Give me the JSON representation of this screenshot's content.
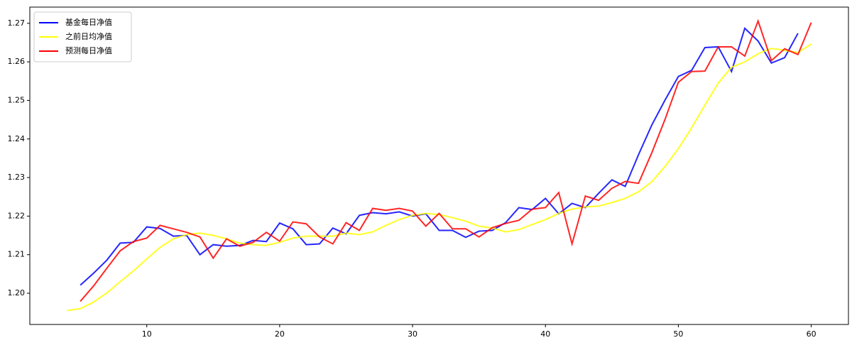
{
  "chart_data": {
    "type": "line",
    "xlim": [
      1.2,
      62.8
    ],
    "ylim": [
      1.1919,
      1.2742
    ],
    "xticks": [
      10,
      20,
      30,
      40,
      50,
      60
    ],
    "yticks": [
      {
        "value": 1.2,
        "label": "1.20"
      },
      1.21,
      1.22,
      1.23,
      1.24,
      1.25,
      1.26,
      1.27
    ],
    "legend": "upper left",
    "series": [
      {
        "name": "基金每日净值",
        "color": "#0000ff",
        "x": [
          5,
          6,
          7,
          8,
          9,
          10,
          11,
          12,
          13,
          14,
          15,
          16,
          17,
          18,
          19,
          20,
          21,
          22,
          23,
          24,
          25,
          26,
          27,
          28,
          29,
          30,
          31,
          32,
          33,
          34,
          35,
          36,
          37,
          38,
          39,
          40,
          41,
          42,
          43,
          44,
          45,
          46,
          47,
          48,
          49,
          50,
          51,
          52,
          53,
          54,
          55,
          56,
          57,
          58,
          59
        ],
        "values": [
          1.2021,
          1.2052,
          1.2086,
          1.213,
          1.2132,
          1.2172,
          1.2168,
          1.2148,
          1.215,
          1.21,
          1.2126,
          1.2122,
          1.2124,
          1.2137,
          1.2134,
          1.2182,
          1.2167,
          1.2126,
          1.2128,
          1.2169,
          1.2154,
          1.2202,
          1.2209,
          1.2206,
          1.2211,
          1.22,
          1.2206,
          1.2163,
          1.2163,
          1.2145,
          1.2161,
          1.2163,
          1.2183,
          1.2222,
          1.2217,
          1.2246,
          1.2206,
          1.2233,
          1.2222,
          1.2259,
          1.2294,
          1.2277,
          1.2359,
          1.2436,
          1.2501,
          1.2562,
          1.2578,
          1.2637,
          1.2639,
          1.2575,
          1.2687,
          1.2654,
          1.2597,
          1.2611,
          1.2674
        ]
      },
      {
        "name": "之前日均净值",
        "color": "#ffff00",
        "x": [
          4,
          5,
          6,
          7,
          8,
          9,
          10,
          11,
          12,
          13,
          14,
          15,
          16,
          17,
          18,
          19,
          20,
          21,
          22,
          23,
          24,
          25,
          26,
          27,
          28,
          29,
          30,
          31,
          32,
          33,
          34,
          35,
          36,
          37,
          38,
          39,
          40,
          41,
          42,
          43,
          44,
          45,
          46,
          47,
          48,
          49,
          50,
          51,
          52,
          53,
          54,
          55,
          56,
          57,
          58,
          59,
          60
        ],
        "values": [
          1.1955,
          1.196,
          1.1977,
          1.2001,
          1.203,
          1.2058,
          1.2089,
          1.2119,
          1.2141,
          1.2152,
          1.2156,
          1.215,
          1.2141,
          1.213,
          1.2126,
          1.2124,
          1.2132,
          1.2143,
          1.2148,
          1.2148,
          1.2148,
          1.2156,
          1.2152,
          1.2159,
          1.2176,
          1.2191,
          1.2202,
          1.2207,
          1.2204,
          1.2196,
          1.2187,
          1.2174,
          1.2169,
          1.2159,
          1.2165,
          1.2178,
          1.2191,
          1.2207,
          1.2218,
          1.2224,
          1.2226,
          1.2235,
          1.2246,
          1.2263,
          1.2289,
          1.2329,
          1.2375,
          1.2429,
          1.2488,
          1.2545,
          1.2586,
          1.26,
          1.2621,
          1.2635,
          1.263,
          1.2624,
          1.2646
        ]
      },
      {
        "name": "预测每日净值",
        "color": "#ff0000",
        "x": [
          5,
          6,
          7,
          8,
          9,
          10,
          11,
          12,
          13,
          14,
          15,
          16,
          17,
          18,
          19,
          20,
          21,
          22,
          23,
          24,
          25,
          26,
          27,
          28,
          29,
          30,
          31,
          32,
          33,
          34,
          35,
          36,
          37,
          38,
          39,
          40,
          41,
          42,
          43,
          44,
          45,
          46,
          47,
          48,
          49,
          50,
          51,
          52,
          53,
          54,
          55,
          56,
          57,
          58,
          59,
          60
        ],
        "values": [
          1.1979,
          1.2019,
          1.2065,
          1.211,
          1.2134,
          1.2143,
          1.2176,
          1.2167,
          1.2158,
          1.2146,
          1.2091,
          1.2141,
          1.2122,
          1.2132,
          1.2158,
          1.2135,
          1.2185,
          1.218,
          1.2146,
          1.2128,
          1.2183,
          1.2163,
          1.222,
          1.2215,
          1.222,
          1.2213,
          1.2174,
          1.2207,
          1.2167,
          1.2167,
          1.2146,
          1.217,
          1.2181,
          1.2189,
          1.2218,
          1.2222,
          1.2261,
          1.2128,
          1.2252,
          1.2241,
          1.2272,
          1.229,
          1.2285,
          1.2364,
          1.2451,
          1.2547,
          1.2575,
          1.2576,
          1.2639,
          1.2639,
          1.2615,
          1.2706,
          1.2603,
          1.2634,
          1.2619,
          1.2702
        ]
      }
    ]
  }
}
